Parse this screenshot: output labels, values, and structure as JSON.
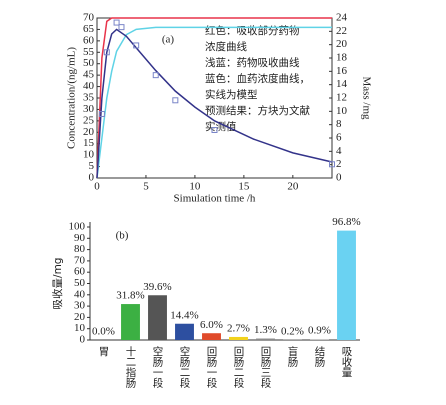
{
  "chart_data": [
    {
      "type": "line",
      "panel_label": "(a)",
      "xlabel": "Simulation time /h",
      "ylabel": "Concentration/(ng/mL)",
      "y2label": "Mass /mg",
      "xlim": [
        0,
        24
      ],
      "xticks": [
        0,
        5,
        10,
        15,
        20
      ],
      "ylim": [
        0,
        70
      ],
      "yticks": [
        0,
        5,
        10,
        15,
        20,
        25,
        30,
        35,
        40,
        45,
        50,
        55,
        60,
        65,
        70
      ],
      "y2lim": [
        0,
        24
      ],
      "y2ticks": [
        0,
        2,
        4,
        6,
        8,
        10,
        12,
        14,
        16,
        18,
        20,
        22,
        24
      ],
      "annotations": [
        "红色：吸收部分药物",
        "浓度曲线",
        "浅蓝：药物吸收曲线",
        "蓝色：血药浓度曲线，",
        "实线为模型",
        "预测结果：方块为文献",
        "实测值"
      ],
      "series": [
        {
          "color": "#e8334a",
          "axis": "y2",
          "marker": "none",
          "x": [
            0,
            0.5,
            1,
            1.5,
            2,
            24
          ],
          "values": [
            0,
            18,
            23.5,
            24,
            24,
            24
          ]
        },
        {
          "color": "#5fd3e6",
          "axis": "y2",
          "marker": "none",
          "x": [
            0,
            0.5,
            1,
            1.5,
            2,
            3,
            4,
            6,
            24
          ],
          "values": [
            0,
            6,
            12,
            16,
            19,
            21.5,
            22.3,
            22.6,
            22.6
          ]
        },
        {
          "color": "#33338a",
          "marker": "none",
          "x": [
            0,
            0.5,
            1,
            1.5,
            2,
            3,
            4,
            6,
            8,
            10,
            12,
            16,
            20,
            24
          ],
          "values": [
            0,
            35,
            55,
            63,
            65,
            62,
            57,
            47,
            38,
            31,
            25,
            17,
            11,
            7
          ]
        },
        {
          "color": "#7a85c8",
          "marker": "square",
          "x": [
            0.5,
            1,
            2,
            2.5,
            4,
            6,
            8,
            12,
            24
          ],
          "values": [
            28,
            55,
            68,
            66,
            58,
            45,
            34,
            21,
            6
          ]
        }
      ]
    },
    {
      "type": "bar",
      "panel_label": "(b)",
      "ylabel": "吸收量/mg",
      "ylim": [
        0,
        100
      ],
      "yticks": [
        0,
        10,
        20,
        30,
        40,
        50,
        60,
        70,
        80,
        90,
        100
      ],
      "categories": [
        "胃",
        "十二指肠",
        "空肠一段",
        "空肠二段",
        "回肠一段",
        "回肠二段",
        "回肠三段",
        "盲肠",
        "结肠",
        "吸收量"
      ],
      "values": [
        0.0,
        31.8,
        39.6,
        14.4,
        6.0,
        2.7,
        1.3,
        0.2,
        0.9,
        96.8
      ],
      "value_labels": [
        "0.0%",
        "31.8%",
        "39.6%",
        "14.4%",
        "6.0%",
        "2.7%",
        "1.3%",
        "0.2%",
        "0.9%",
        "96.8%"
      ],
      "colors": [
        "#999999",
        "#3cb043",
        "#555555",
        "#2d4fa0",
        "#e04a2a",
        "#f2d21b",
        "#8a8a8a",
        "#b0b0b0",
        "#c9c9c9",
        "#6ad2f2"
      ]
    }
  ]
}
